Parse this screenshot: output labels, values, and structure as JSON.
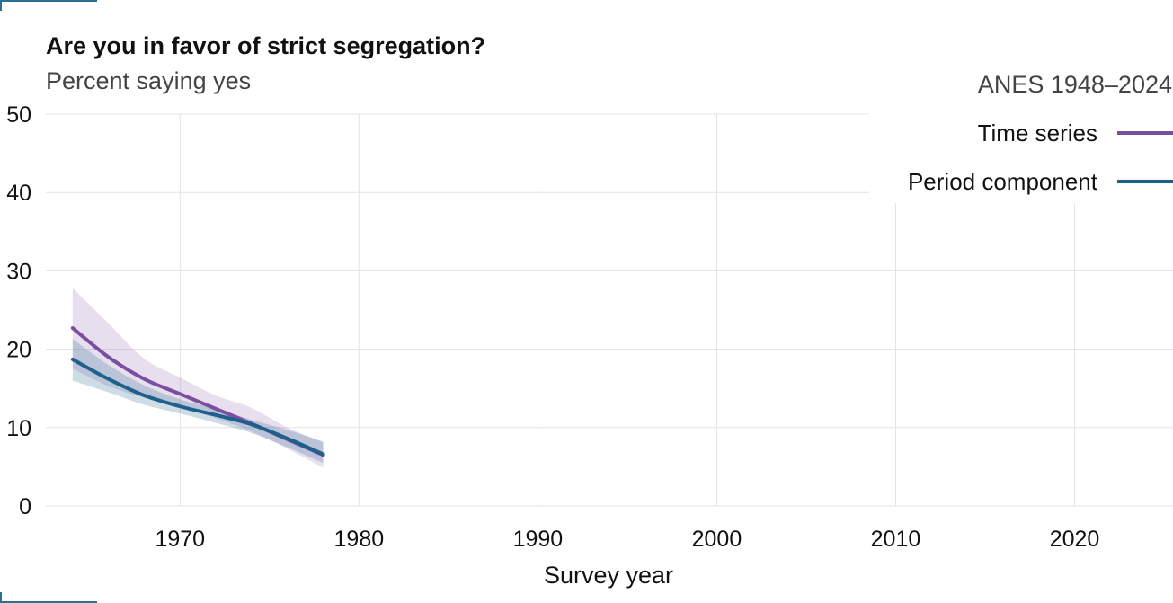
{
  "header": {
    "title": "Are you in favor of strict segregation?",
    "subtitle": "Percent saying yes",
    "source": "ANES 1948–2024"
  },
  "colors": {
    "time_series": "#7b4fa0",
    "period_component": "#1f5f8b",
    "grid": "#e3e3e3",
    "accent": "#2a6f97"
  },
  "chart_data": {
    "type": "line",
    "title": "Are you in favor of strict segregation?",
    "subtitle": "Percent saying yes",
    "xlabel": "Survey year",
    "ylabel": "",
    "xlim": [
      1962.5,
      2025.5
    ],
    "ylim": [
      0,
      50
    ],
    "xticks": [
      1970,
      1980,
      1990,
      2000,
      2010,
      2020
    ],
    "yticks": [
      0,
      10,
      20,
      30,
      40,
      50
    ],
    "grid": true,
    "legend": "top-right",
    "series": [
      {
        "name": "Time series",
        "color": "#7b4fa0",
        "x": [
          1964,
          1966,
          1968,
          1970,
          1972,
          1974,
          1976,
          1978
        ],
        "y": [
          22.7,
          19.0,
          16.2,
          14.3,
          12.4,
          10.5,
          8.5,
          6.5
        ],
        "lower": [
          17.5,
          15.3,
          13.8,
          12.6,
          11.2,
          9.5,
          7.3,
          4.9
        ],
        "upper": [
          27.8,
          23.3,
          18.8,
          16.4,
          14.1,
          12.5,
          10.0,
          8.1
        ]
      },
      {
        "name": "Period component",
        "color": "#1f5f8b",
        "x": [
          1964,
          1966,
          1968,
          1970,
          1972,
          1974,
          1976,
          1978
        ],
        "y": [
          18.7,
          16.2,
          14.1,
          12.7,
          11.6,
          10.4,
          8.6,
          6.6
        ],
        "lower": [
          16.0,
          14.5,
          12.9,
          11.8,
          10.6,
          9.3,
          7.5,
          5.5
        ],
        "upper": [
          21.3,
          18.0,
          15.4,
          13.6,
          12.4,
          11.0,
          9.7,
          8.2
        ]
      }
    ]
  }
}
